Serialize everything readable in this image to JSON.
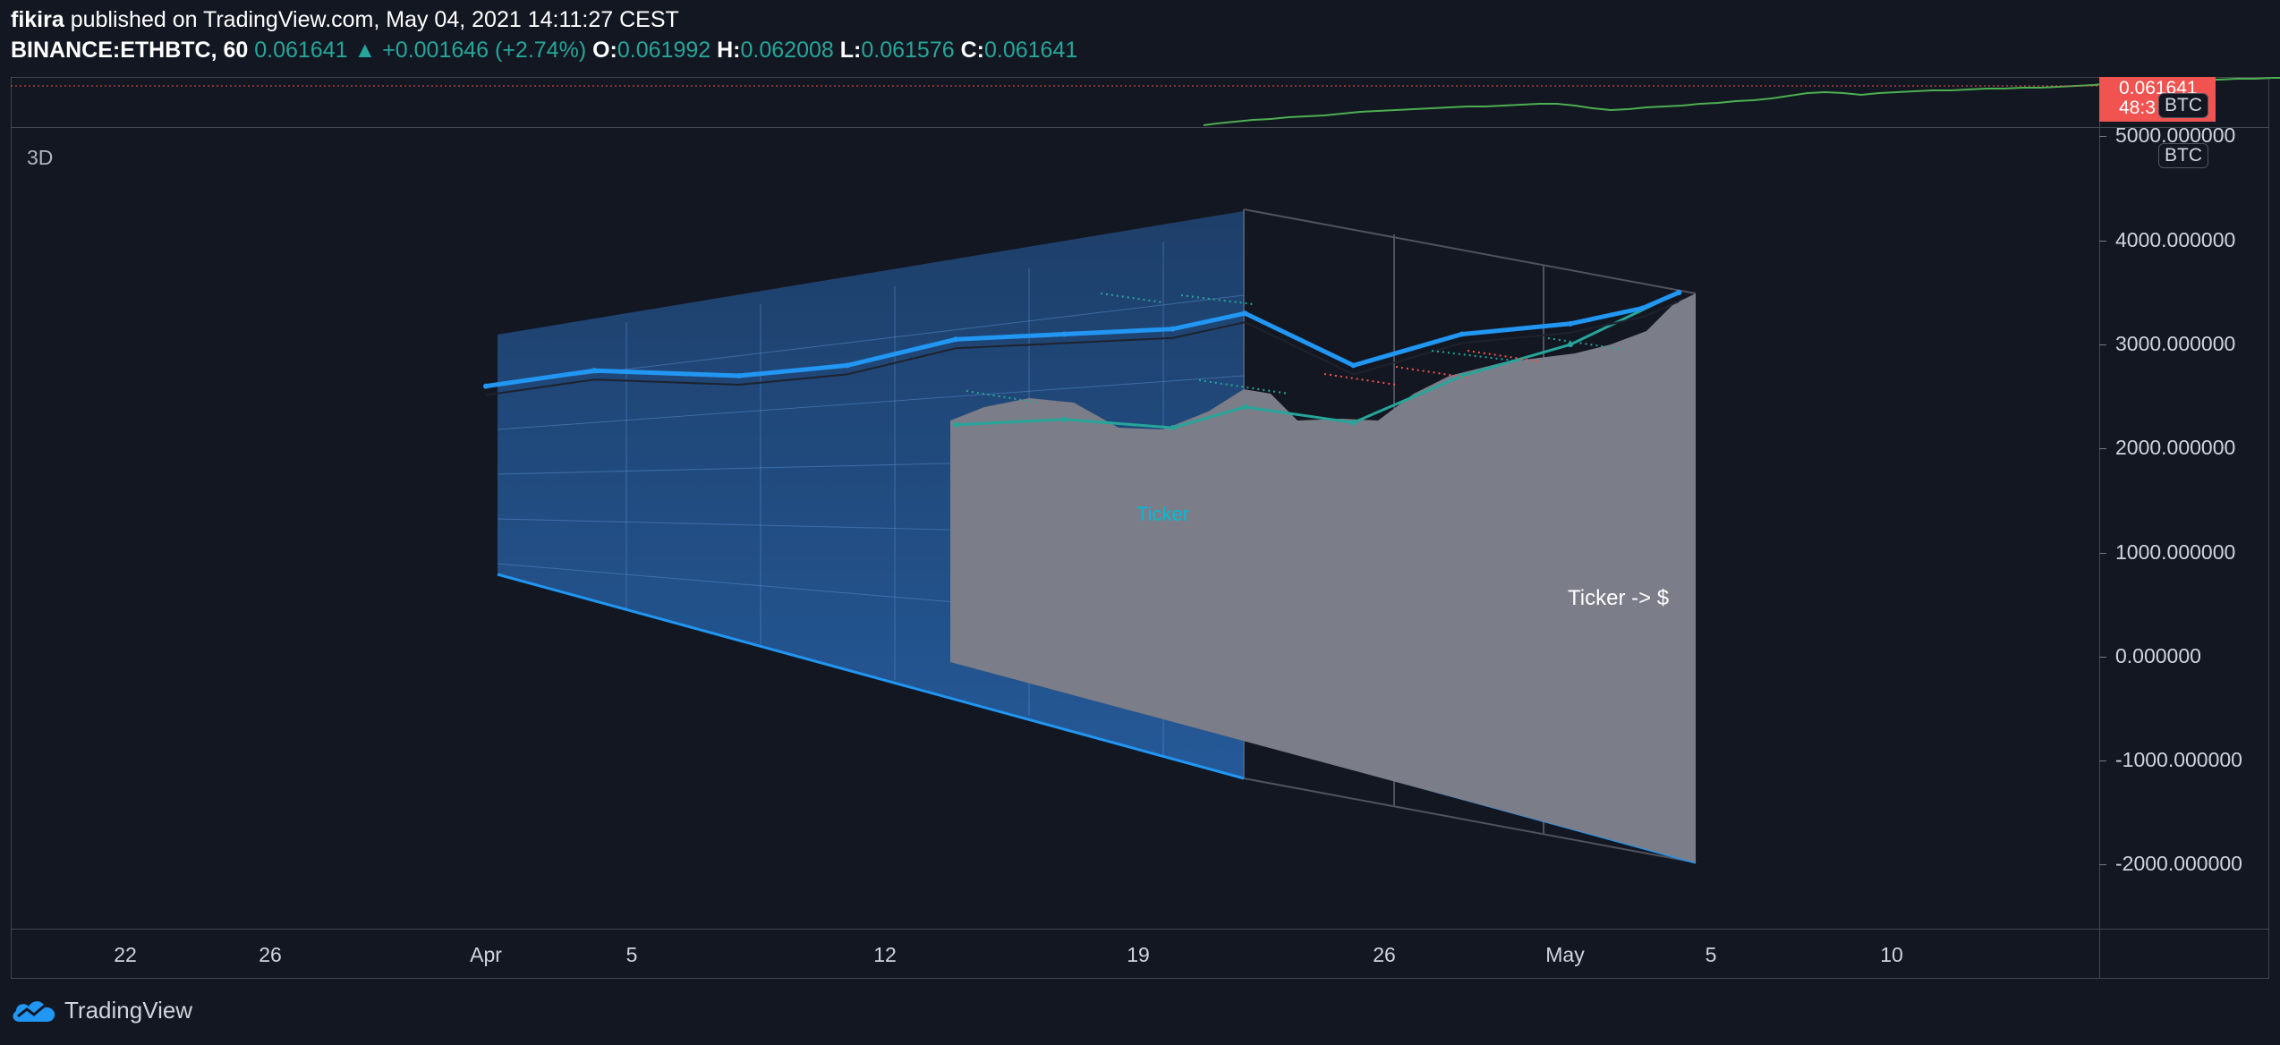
{
  "header": {
    "author": "fikira",
    "published_text": "published on TradingView.com, May 04, 2021 14:11:27 CEST",
    "symbol": "BINANCE:ETHBTC, 60",
    "last": "0.061641",
    "change": "+0.001646 (+2.74%)",
    "o_label": "O:",
    "o_value": "0.061992",
    "h_label": "H:",
    "h_value": "0.062008",
    "l_label": "L:",
    "l_value": "0.061576",
    "c_label": "C:",
    "c_value": "0.061641"
  },
  "pane": {
    "label": "3D",
    "price_tag_top": "0.061641",
    "price_tag_bottom": "48:3",
    "currency_top": "BTC",
    "currency_pane": "BTC",
    "ticker_label": "Ticker",
    "ticker_dollar_label": "Ticker -> $"
  },
  "colors": {
    "background": "#131722",
    "up": "#26a69a",
    "down": "#f05350",
    "blue_line": "#2196f3",
    "panel_blue": "#2a6fbf",
    "panel_gray": "#787b86",
    "ticker_text": "#00bcd4",
    "grid": "#434651"
  },
  "branding": {
    "logo_icon": "tradingview-cloud-icon",
    "name": "TradingView"
  },
  "chart_data": {
    "type": "line",
    "title": "",
    "x_ticks": [
      "22",
      "26",
      "Apr",
      "5",
      "12",
      "19",
      "26",
      "May",
      "5",
      "10"
    ],
    "y_ticks": [
      "5000.000000",
      "4000.000000",
      "3000.000000",
      "2000.000000",
      "1000.000000",
      "0.000000",
      "-1000.000000",
      "-2000.000000"
    ],
    "ylim": [
      -2600,
      5100
    ],
    "grid": false,
    "legend": "none",
    "series": [
      {
        "x": [
          "2021-04-01",
          "2021-04-04",
          "2021-04-08",
          "2021-04-11",
          "2021-04-14",
          "2021-04-17",
          "2021-04-20",
          "2021-04-22",
          "2021-04-25",
          "2021-04-28",
          "2021-05-01",
          "2021-05-03",
          "2021-05-04"
        ],
        "values": [
          2600,
          2750,
          2700,
          2800,
          3050,
          3100,
          3150,
          3300,
          2800,
          3100,
          3200,
          3350,
          3500
        ]
      },
      {
        "x": [
          "2021-04-14",
          "2021-04-17",
          "2021-04-20",
          "2021-04-22",
          "2021-04-25",
          "2021-04-28",
          "2021-05-01",
          "2021-05-04"
        ],
        "values": [
          2230,
          2280,
          2200,
          2400,
          2250,
          2700,
          3000,
          3500
        ]
      }
    ]
  }
}
